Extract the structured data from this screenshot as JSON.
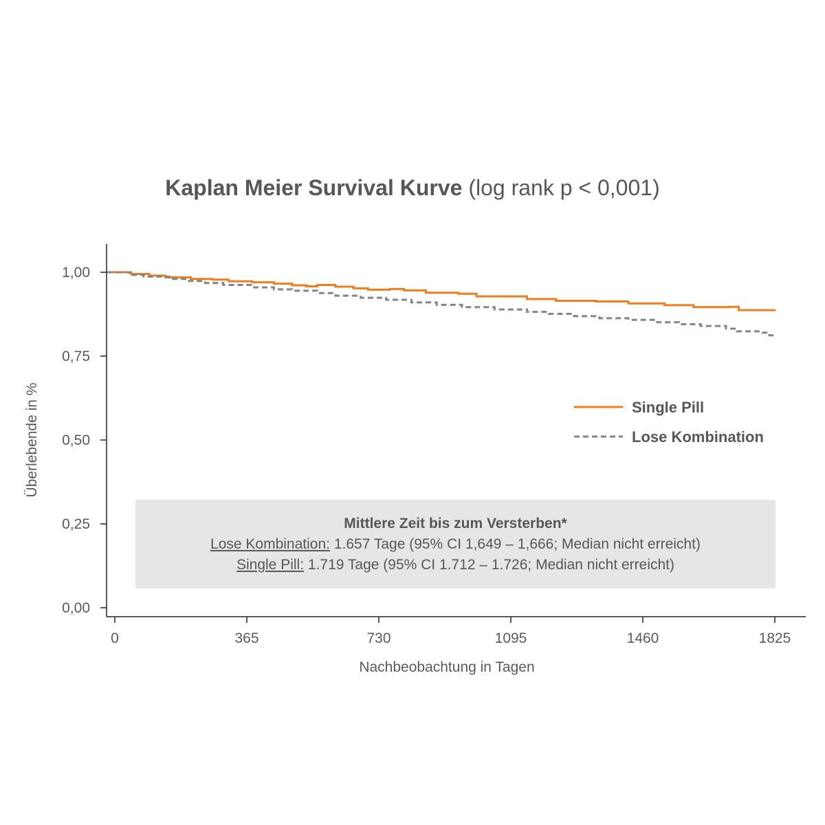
{
  "title": {
    "main": "Kaplan Meier Survival Kurve",
    "suffix": "(log rank p < 0,001)"
  },
  "info_box": {
    "heading": "Mittlere Zeit bis zum Versterben*",
    "line1_label": "Lose Kombination:",
    "line1_text": "1.657 Tage (95% CI 1,649 – 1,666; Median nicht erreicht)",
    "line2_label": "Single Pill:",
    "line2_text": "1.719 Tage (95% CI 1.712 – 1.726; Median nicht erreicht)"
  },
  "chart_data": {
    "type": "line",
    "title": "Kaplan Meier Survival Kurve (log rank p < 0,001)",
    "xlabel": "Nachbeobachtung in Tagen",
    "ylabel": "Überlebende in %",
    "xlim": [
      -20,
      1890
    ],
    "ylim": [
      -0.03,
      1.08
    ],
    "xticks": [
      0,
      365,
      730,
      1095,
      1460,
      1825
    ],
    "xtick_labels": [
      "0",
      "365",
      "730",
      "1095",
      "1460",
      "1825"
    ],
    "yticks": [
      0,
      0.25,
      0.5,
      0.75,
      1.0
    ],
    "ytick_labels": [
      "0,00",
      "0,25",
      "0,50",
      "0,75",
      "1,00"
    ],
    "grid": false,
    "legend_position": "right",
    "series": [
      {
        "name": "Single Pill",
        "color": "#ee7d1e",
        "style": "solid",
        "step": true,
        "x": [
          0,
          45,
          95,
          140,
          210,
          270,
          315,
          380,
          440,
          490,
          530,
          560,
          610,
          660,
          700,
          760,
          800,
          860,
          950,
          1000,
          1140,
          1220,
          1330,
          1420,
          1520,
          1600,
          1700,
          1725,
          1825
        ],
        "y": [
          1.0,
          0.995,
          0.99,
          0.985,
          0.98,
          0.978,
          0.973,
          0.97,
          0.966,
          0.961,
          0.958,
          0.962,
          0.957,
          0.952,
          0.948,
          0.95,
          0.946,
          0.939,
          0.936,
          0.928,
          0.92,
          0.915,
          0.913,
          0.907,
          0.902,
          0.896,
          0.897,
          0.887,
          0.889
        ]
      },
      {
        "name": "Lose Kombination",
        "color": "#858585",
        "style": "dashed",
        "step": true,
        "x": [
          0,
          40,
          80,
          150,
          195,
          250,
          300,
          380,
          440,
          490,
          560,
          610,
          680,
          750,
          820,
          890,
          960,
          1050,
          1140,
          1200,
          1270,
          1340,
          1420,
          1500,
          1560,
          1620,
          1690,
          1720,
          1780,
          1810,
          1825
        ],
        "y": [
          1.0,
          0.992,
          0.987,
          0.98,
          0.974,
          0.968,
          0.962,
          0.955,
          0.949,
          0.945,
          0.938,
          0.93,
          0.924,
          0.918,
          0.91,
          0.903,
          0.896,
          0.889,
          0.882,
          0.876,
          0.869,
          0.863,
          0.858,
          0.851,
          0.845,
          0.84,
          0.832,
          0.824,
          0.82,
          0.812,
          0.805
        ]
      }
    ]
  }
}
